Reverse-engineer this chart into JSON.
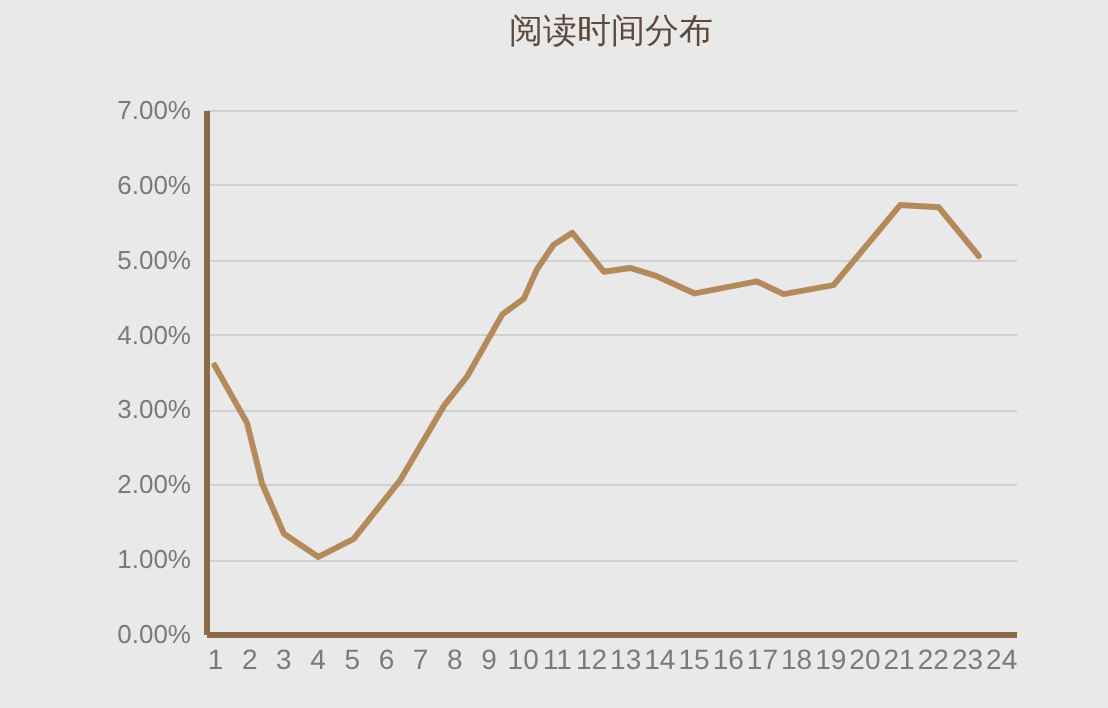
{
  "chart_data": {
    "type": "line",
    "title": "阅读时间分布",
    "x": [
      1.0,
      1.95,
      2.39,
      3.03,
      4.04,
      5.07,
      6.44,
      7.7,
      8.39,
      9.42,
      10.05,
      10.43,
      10.92,
      11.47,
      12.39,
      13.16,
      13.94,
      15.05,
      16.87,
      17.65,
      19.11,
      21.06,
      22.19,
      23.36
    ],
    "values": [
      3.59,
      2.82,
      2.01,
      1.34,
      1.03,
      1.27,
      2.06,
      3.04,
      3.44,
      4.27,
      4.48,
      4.87,
      5.2,
      5.36,
      4.84,
      4.89,
      4.78,
      4.55,
      4.71,
      4.54,
      4.66,
      5.73,
      5.7,
      5.05
    ],
    "color": "#b48a5c",
    "xlim": [
      0.75,
      24.45
    ],
    "xticks": [
      1,
      2,
      3,
      4,
      5,
      6,
      7,
      8,
      9,
      10,
      11,
      12,
      13,
      14,
      15,
      16,
      17,
      18,
      19,
      20,
      21,
      22,
      23,
      24
    ],
    "ylim": [
      0,
      7
    ],
    "yticks": [
      {
        "value": 0,
        "label": "0.00%"
      },
      {
        "value": 1,
        "label": "1.00%"
      },
      {
        "value": 2,
        "label": "2.00%"
      },
      {
        "value": 3,
        "label": "3.00%"
      },
      {
        "value": 4,
        "label": "4.00%"
      },
      {
        "value": 5,
        "label": "5.00%"
      },
      {
        "value": 6,
        "label": "6.00%"
      },
      {
        "value": 7,
        "label": "7.00%"
      }
    ],
    "grid": "y",
    "line_style": "solid"
  }
}
